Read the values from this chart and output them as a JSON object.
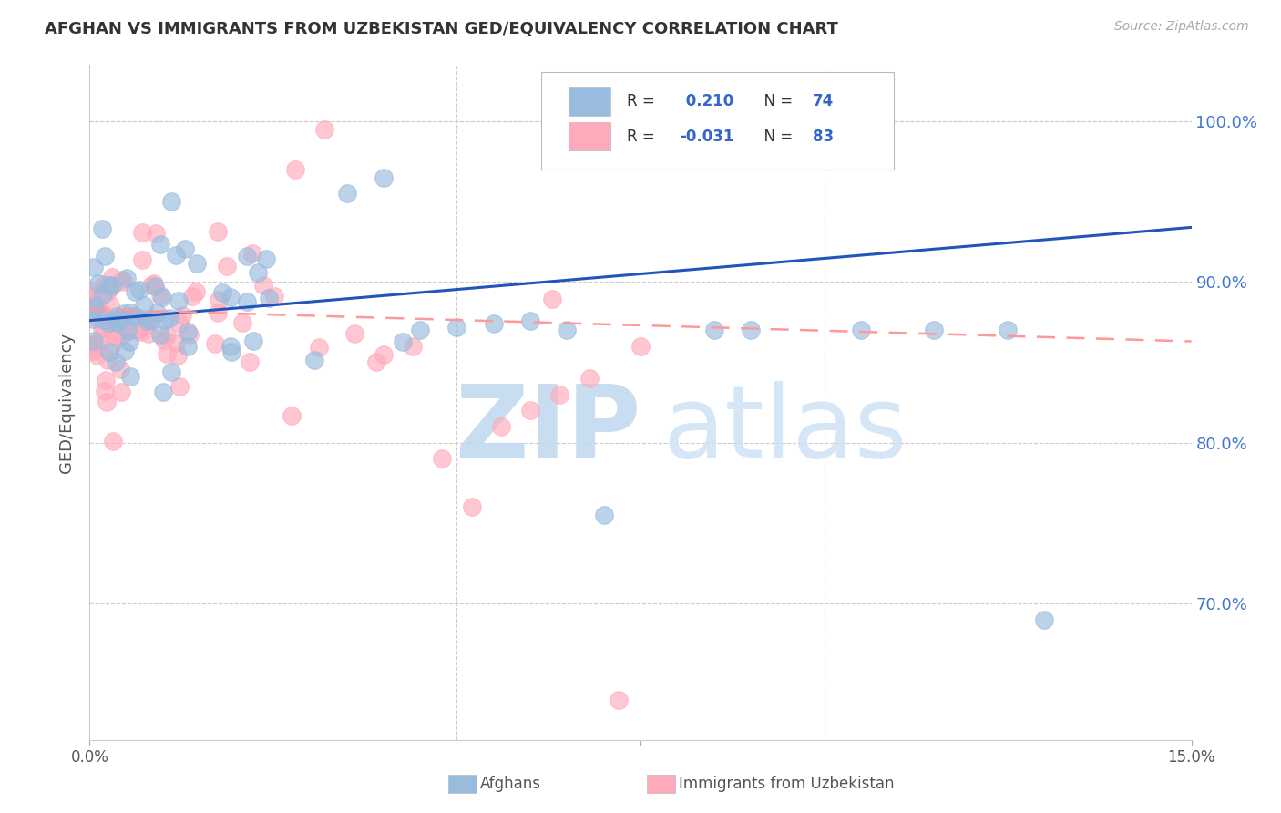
{
  "title": "AFGHAN VS IMMIGRANTS FROM UZBEKISTAN GED/EQUIVALENCY CORRELATION CHART",
  "source": "Source: ZipAtlas.com",
  "ylabel": "GED/Equivalency",
  "xmin": 0.0,
  "xmax": 0.15,
  "ymin": 0.615,
  "ymax": 1.035,
  "blue_color": "#99BBDD",
  "pink_color": "#FFAABB",
  "blue_line_color": "#2255BB",
  "pink_line_color": "#FF9999",
  "blue_intercept": 0.876,
  "blue_slope_total": 0.058,
  "pink_intercept": 0.883,
  "pink_slope_total": -0.02,
  "watermark_zip": "ZIP",
  "watermark_atlas": "atlas",
  "watermark_color": "#C8DAEE",
  "legend_text_color": "#3366CC",
  "right_axis_color": "#4477CC",
  "grid_color": "#CCCCCC",
  "title_color": "#333333",
  "source_color": "#AAAAAA"
}
